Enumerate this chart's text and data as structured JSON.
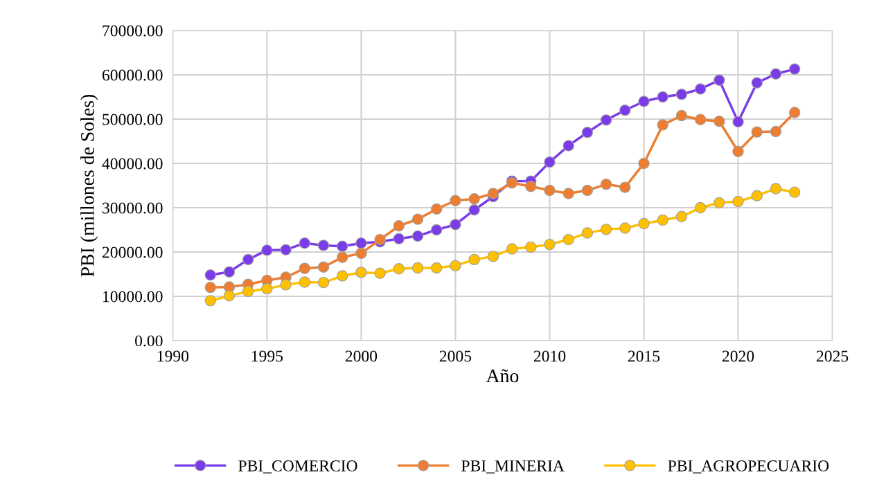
{
  "chart_data": {
    "type": "line",
    "xlabel": "Año",
    "ylabel": "PBI (millones de Soles)",
    "x": [
      1992,
      1993,
      1994,
      1995,
      1996,
      1997,
      1998,
      1999,
      2000,
      2001,
      2002,
      2003,
      2004,
      2005,
      2006,
      2007,
      2008,
      2009,
      2010,
      2011,
      2012,
      2013,
      2014,
      2015,
      2016,
      2017,
      2018,
      2019,
      2020,
      2021,
      2022,
      2023
    ],
    "series": [
      {
        "name": "PBI_COMERCIO",
        "color": "#7a3ce8",
        "values": [
          14800,
          15500,
          18300,
          20400,
          20500,
          22000,
          21500,
          21300,
          22000,
          22300,
          23000,
          23600,
          25000,
          26200,
          29500,
          32500,
          36000,
          36000,
          40300,
          44000,
          47000,
          49800,
          52000,
          54000,
          55000,
          55600,
          56800,
          58800,
          49400,
          58200,
          60200,
          61300
        ]
      },
      {
        "name": "PBI_MINERIA",
        "color": "#ed7d31",
        "values": [
          12000,
          12100,
          12700,
          13600,
          14300,
          16300,
          16600,
          18800,
          19700,
          22800,
          25900,
          27400,
          29700,
          31600,
          32000,
          33200,
          35600,
          34800,
          33900,
          33200,
          33900,
          35300,
          34600,
          40000,
          48700,
          50800,
          49900,
          49500,
          42700,
          47100,
          47200,
          51500
        ]
      },
      {
        "name": "PBI_AGROPECUARIO",
        "color": "#ffc000",
        "values": [
          9000,
          10100,
          11100,
          11700,
          12600,
          13200,
          13100,
          14600,
          15400,
          15200,
          16200,
          16400,
          16400,
          16900,
          18300,
          19000,
          20700,
          21100,
          21700,
          22800,
          24300,
          25100,
          25400,
          26400,
          27200,
          28000,
          30000,
          31100,
          31400,
          32700,
          34300,
          33500
        ]
      }
    ],
    "xlim": [
      1990,
      2025
    ],
    "xticks": [
      1990,
      1995,
      2000,
      2005,
      2010,
      2015,
      2020,
      2025
    ],
    "ylim": [
      0,
      70000
    ],
    "yticks": [
      {
        "value": 0,
        "label": "0.00"
      },
      {
        "value": 10000,
        "label": "10000.00"
      },
      {
        "value": 20000,
        "label": "20000.00"
      },
      {
        "value": 30000,
        "label": "30000.00"
      },
      {
        "value": 40000,
        "label": "40000.00"
      },
      {
        "value": 50000,
        "label": "50000.00"
      },
      {
        "value": 60000,
        "label": "60000.00"
      },
      {
        "value": 70000,
        "label": "70000.00"
      }
    ],
    "grid": true,
    "legend": "bottom",
    "marker": "circle",
    "line_style": "solid"
  }
}
